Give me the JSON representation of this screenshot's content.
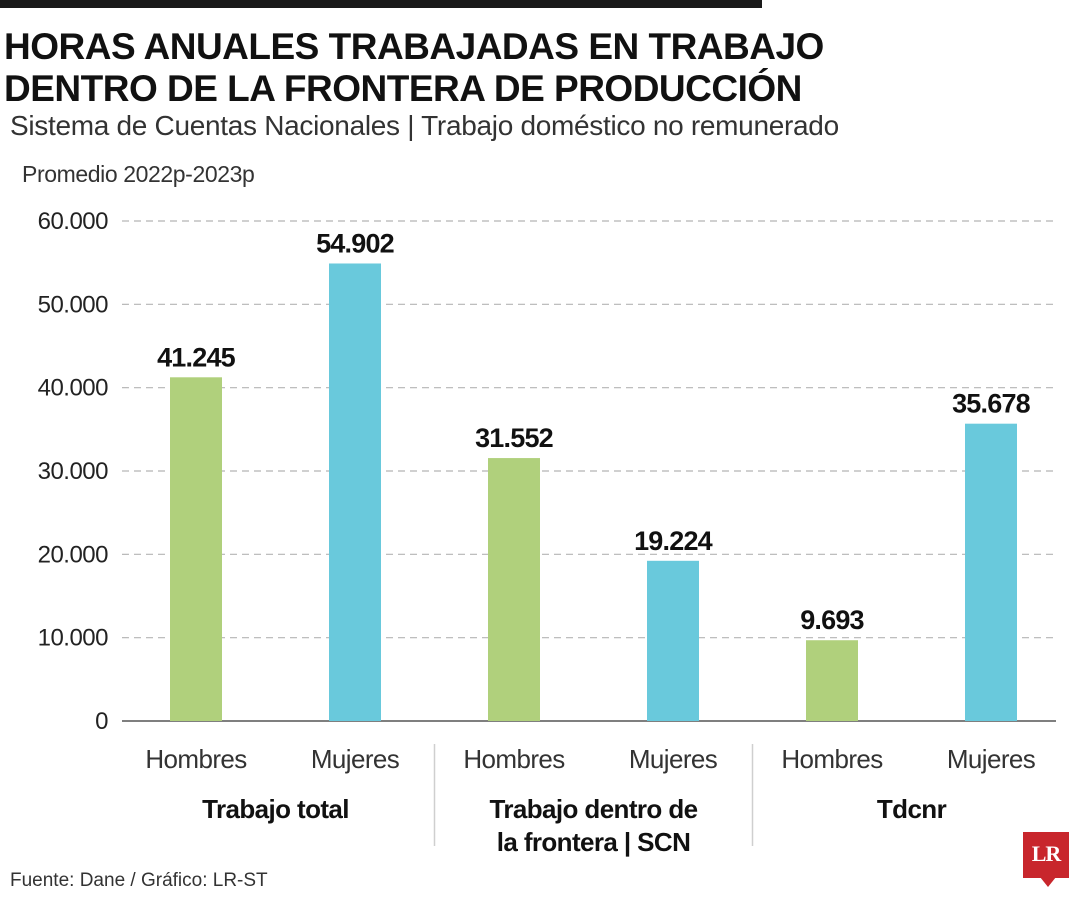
{
  "header": {
    "title_line1": "HORAS ANUALES TRABAJADAS EN TRABAJO",
    "title_line2": "DENTRO DE LA FRONTERA DE PRODUCCIÓN",
    "subtitle": "Sistema de Cuentas Nacionales | Trabajo doméstico no remunerado",
    "note": "Promedio 2022p-2023p"
  },
  "footer": {
    "source": "Fuente: Dane / Gráfico: LR-ST",
    "logo_text": "LR"
  },
  "colors": {
    "hombres": "#b0d07c",
    "mujeres": "#69c9dc",
    "brand": "#c8262c"
  },
  "chart_data": {
    "type": "bar",
    "ylim": [
      0,
      60000
    ],
    "yticks": [
      0,
      10000,
      20000,
      30000,
      40000,
      50000,
      60000
    ],
    "ytick_labels": [
      "0",
      "10.000",
      "20.000",
      "30.000",
      "40.000",
      "50.000",
      "60.000"
    ],
    "grid": true,
    "groups": [
      {
        "label_lines": [
          "Trabajo total"
        ],
        "bars": [
          {
            "category": "Hombres",
            "value": 41245,
            "label": "41.245"
          },
          {
            "category": "Mujeres",
            "value": 54902,
            "label": "54.902"
          }
        ]
      },
      {
        "label_lines": [
          "Trabajo dentro de",
          "la frontera | SCN"
        ],
        "bars": [
          {
            "category": "Hombres",
            "value": 31552,
            "label": "31.552"
          },
          {
            "category": "Mujeres",
            "value": 19224,
            "label": "19.224"
          }
        ]
      },
      {
        "label_lines": [
          "Tdcnr"
        ],
        "bars": [
          {
            "category": "Hombres",
            "value": 9693,
            "label": "9.693"
          },
          {
            "category": "Mujeres",
            "value": 35678,
            "label": "35.678"
          }
        ]
      }
    ]
  }
}
